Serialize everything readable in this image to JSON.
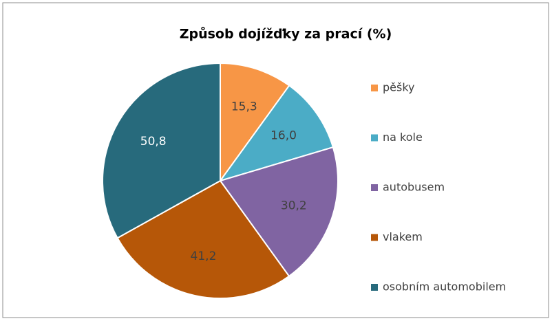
{
  "chart_data": {
    "type": "pie",
    "title": "Způsob dojížďky za prací (%)",
    "categories": [
      "pěšky",
      "na kole",
      "autobusem",
      "vlakem",
      "osobním automobilem"
    ],
    "values": [
      15.3,
      16.0,
      30.2,
      41.2,
      50.8
    ],
    "value_labels": [
      "15,3",
      "16,0",
      "30,2",
      "41,2",
      "50,8"
    ],
    "colors": [
      "#f79646",
      "#4bacc6",
      "#8064a2",
      "#b65708",
      "#276a7c"
    ],
    "legend": "right"
  }
}
